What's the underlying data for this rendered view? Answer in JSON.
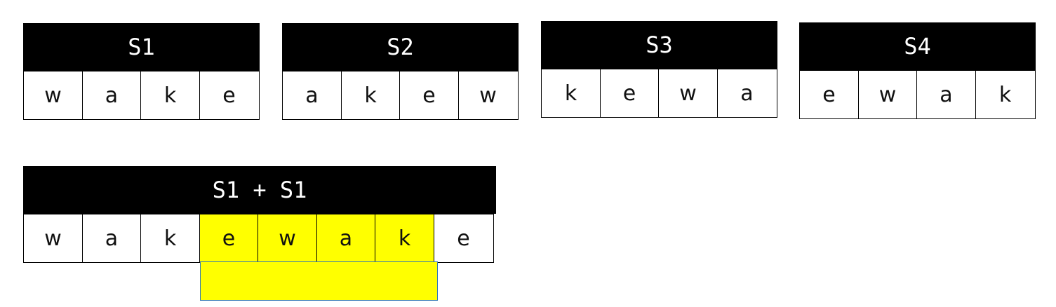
{
  "colors": {
    "header_bg": "#000000",
    "header_text": "#ffffff",
    "highlight": "#ffff00",
    "band_border": "#2f75b5"
  },
  "tables": [
    {
      "title": "S1",
      "cells": [
        "w",
        "a",
        "k",
        "e"
      ]
    },
    {
      "title": "S2",
      "cells": [
        "a",
        "k",
        "e",
        "w"
      ]
    },
    {
      "title": "S3",
      "cells": [
        "k",
        "e",
        "w",
        "a"
      ]
    },
    {
      "title": "S4",
      "cells": [
        "e",
        "w",
        "a",
        "k"
      ]
    }
  ],
  "concat": {
    "title": "S1 + S1",
    "cells": [
      "w",
      "a",
      "k",
      "e",
      "w",
      "a",
      "k",
      "e"
    ],
    "highlighted": [
      3,
      4,
      5,
      6
    ]
  }
}
